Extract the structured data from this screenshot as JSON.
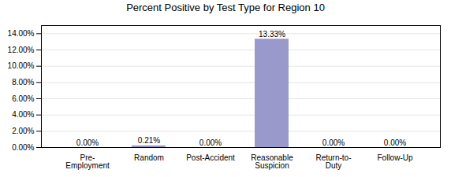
{
  "chart_data": {
    "type": "bar",
    "title": "Percent Positive by Test Type for Region 10",
    "categories": [
      "Pre-\nEmployment",
      "Random",
      "Post-Accident",
      "Reasonable\nSuspicion",
      "Return-to-\nDuty",
      "Follow-Up"
    ],
    "values": [
      0.0,
      0.0021,
      0.0,
      0.1333,
      0.0,
      0.0
    ],
    "value_labels": [
      "0.00%",
      "0.21%",
      "0.00%",
      "13.33%",
      "0.00%",
      "0.00%"
    ],
    "data_labels": true,
    "color": "#9999cc",
    "ylim": [
      0,
      0.15
    ],
    "yticks": [
      {
        "value": 0.0,
        "label": "0.00%"
      },
      {
        "value": 0.02,
        "label": "2.00%"
      },
      {
        "value": 0.04,
        "label": "4.00%"
      },
      {
        "value": 0.06,
        "label": "6.00%"
      },
      {
        "value": 0.08,
        "label": "8.00%"
      },
      {
        "value": 0.1,
        "label": "10.00%"
      },
      {
        "value": 0.12,
        "label": "12.00%"
      },
      {
        "value": 0.14,
        "label": "14.00%"
      }
    ],
    "grid": true
  }
}
